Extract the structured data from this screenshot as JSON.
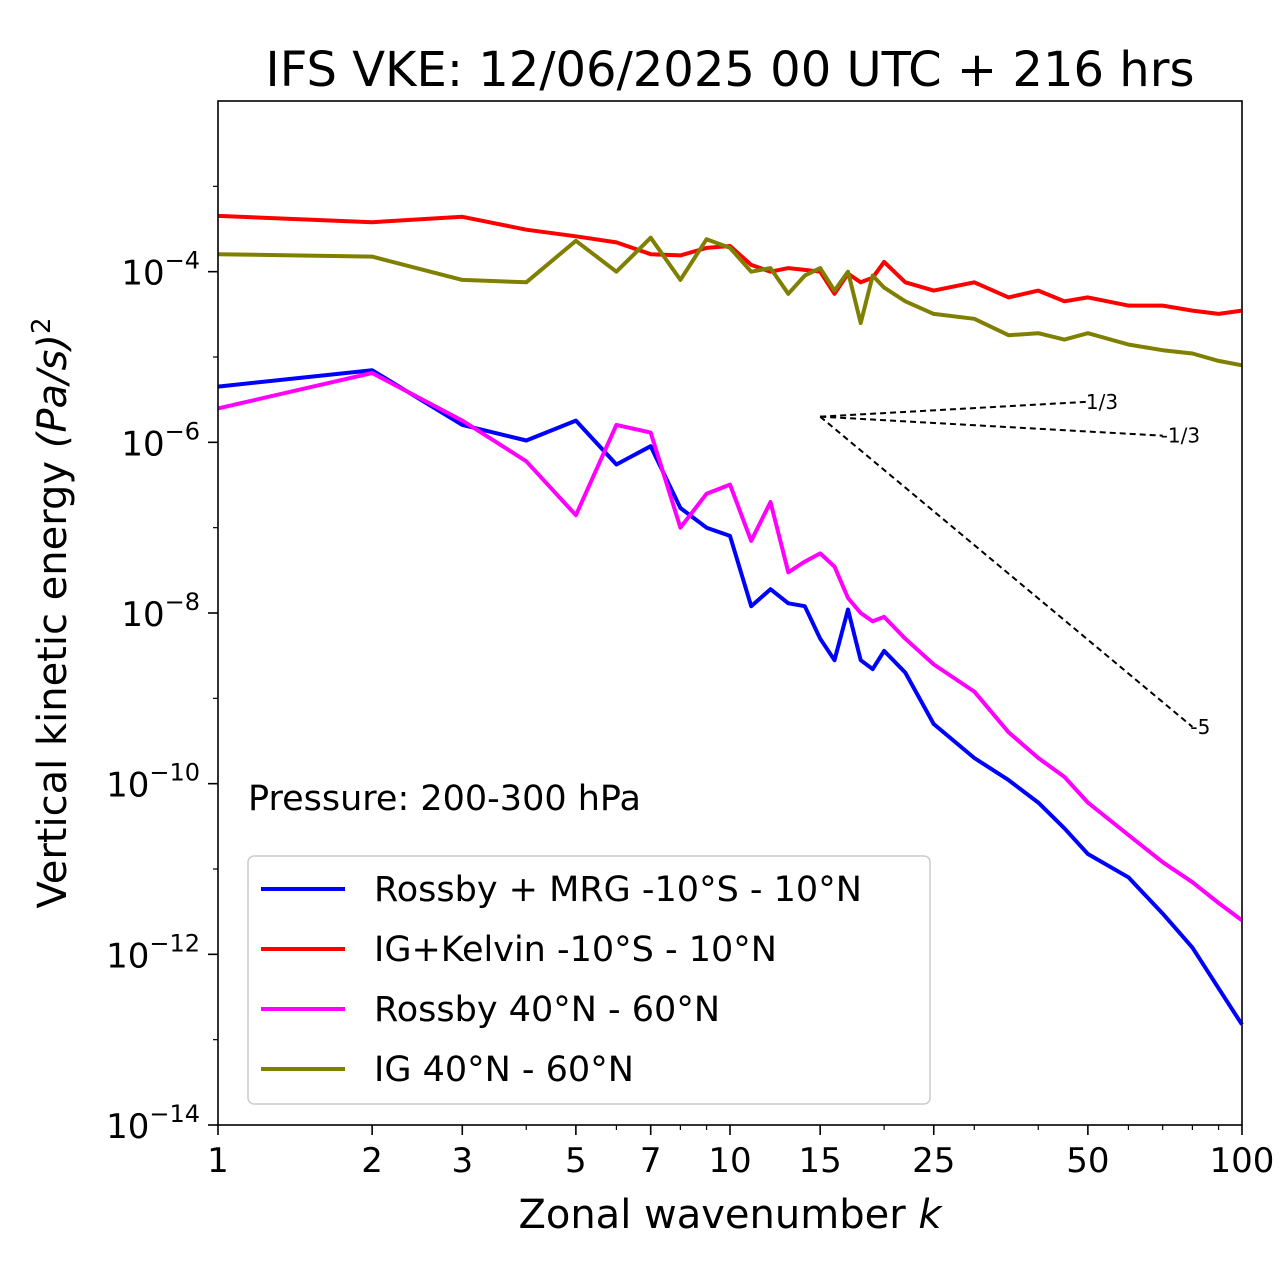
{
  "chart_data": {
    "type": "line",
    "title": "IFS VKE: 12/06/2025 00 UTC + 216 hrs",
    "xlabel": "Zonal wavenumber",
    "xlabel_var": "k",
    "ylabel": "Vertical kinetic energy",
    "ylabel_unit": "(Pa/s)",
    "ylabel_power": "2",
    "x_scale": "log",
    "y_scale": "log",
    "xlim": [
      1,
      100
    ],
    "ylim": [
      1e-14,
      0.01
    ],
    "x_ticks": [
      1,
      2,
      3,
      5,
      7,
      10,
      15,
      25,
      50,
      100
    ],
    "x_tick_labels": [
      "1",
      "2",
      "3",
      "5",
      "7",
      "10",
      "15",
      "25",
      "50",
      "100"
    ],
    "y_ticks": [
      {
        "value": 0.0001,
        "base": "10",
        "exp": "−4"
      },
      {
        "value": 1e-06,
        "base": "10",
        "exp": "−6"
      },
      {
        "value": 1e-08,
        "base": "10",
        "exp": "−8"
      },
      {
        "value": 1e-10,
        "base": "10",
        "exp": "−10"
      },
      {
        "value": 1e-12,
        "base": "10",
        "exp": "−12"
      },
      {
        "value": 1e-14,
        "base": "10",
        "exp": "−14"
      }
    ],
    "annotation": "Pressure: 200-300 hPa",
    "legend_position": "lower-left",
    "series": [
      {
        "name": "Rossby + MRG -10°S - 10°N",
        "color": "#0000ff",
        "x": [
          1,
          2,
          3,
          4,
          5,
          6,
          7,
          8,
          9,
          10,
          11,
          12,
          13,
          14,
          15,
          16,
          17,
          18,
          19,
          20,
          22,
          25,
          30,
          35,
          40,
          45,
          50,
          60,
          70,
          80,
          90,
          100
        ],
        "y": [
          4.5e-06,
          7e-06,
          1.6e-06,
          1.05e-06,
          1.8e-06,
          5.5e-07,
          9e-07,
          1.7e-07,
          1e-07,
          8e-08,
          1.2e-08,
          1.9e-08,
          1.3e-08,
          1.2e-08,
          5e-09,
          2.8e-09,
          1.1e-08,
          2.8e-09,
          2.2e-09,
          3.6e-09,
          2e-09,
          5e-10,
          2e-10,
          1.1e-10,
          6e-11,
          3e-11,
          1.5e-11,
          8e-12,
          3e-12,
          1.2e-12,
          4e-13,
          1.5e-13
        ]
      },
      {
        "name": "IG+Kelvin -10°S - 10°N",
        "color": "#ff0000",
        "x": [
          1,
          2,
          3,
          4,
          5,
          6,
          7,
          8,
          9,
          10,
          11,
          12,
          13,
          14,
          15,
          16,
          17,
          18,
          19,
          20,
          22,
          25,
          30,
          35,
          40,
          45,
          50,
          60,
          70,
          80,
          90,
          100
        ],
        "y": [
          0.00045,
          0.00038,
          0.00044,
          0.00031,
          0.00026,
          0.00022,
          0.00016,
          0.000155,
          0.00019,
          0.0002,
          0.00012,
          0.0001,
          0.00011,
          0.000105,
          0.0001,
          5.5e-05,
          9.5e-05,
          7.5e-05,
          8.5e-05,
          0.00013,
          7.5e-05,
          6e-05,
          7.5e-05,
          5e-05,
          6e-05,
          4.5e-05,
          5e-05,
          4e-05,
          4e-05,
          3.5e-05,
          3.2e-05,
          3.5e-05
        ]
      },
      {
        "name": "Rossby 40°N - 60°N",
        "color": "#ff00ff",
        "x": [
          1,
          2,
          3,
          4,
          5,
          6,
          7,
          8,
          9,
          10,
          11,
          12,
          13,
          14,
          15,
          16,
          17,
          18,
          19,
          20,
          22,
          25,
          30,
          35,
          40,
          45,
          50,
          60,
          70,
          80,
          90,
          100
        ],
        "y": [
          2.5e-06,
          6.5e-06,
          1.8e-06,
          6e-07,
          1.4e-07,
          1.6e-06,
          1.3e-06,
          1e-07,
          2.5e-07,
          3.2e-07,
          7e-08,
          2e-07,
          3e-08,
          4e-08,
          5e-08,
          3.5e-08,
          1.5e-08,
          1e-08,
          8e-09,
          9e-09,
          5e-09,
          2.5e-09,
          1.2e-09,
          4e-10,
          2e-10,
          1.2e-10,
          6e-11,
          2.5e-11,
          1.2e-11,
          7e-12,
          4e-12,
          2.5e-12
        ]
      },
      {
        "name": "IG 40°N - 60°N",
        "color": "#808000",
        "x": [
          1,
          2,
          3,
          4,
          5,
          6,
          7,
          8,
          9,
          10,
          11,
          12,
          13,
          14,
          15,
          16,
          17,
          18,
          19,
          20,
          22,
          25,
          30,
          35,
          40,
          45,
          50,
          60,
          70,
          80,
          90,
          100
        ],
        "y": [
          0.00016,
          0.00015,
          8e-05,
          7.5e-05,
          0.00023,
          0.0001,
          0.00025,
          8e-05,
          0.00024,
          0.00019,
          0.0001,
          0.00011,
          5.5e-05,
          9e-05,
          0.00011,
          6e-05,
          0.0001,
          2.5e-05,
          9e-05,
          6.5e-05,
          4.5e-05,
          3.2e-05,
          2.8e-05,
          1.8e-05,
          1.9e-05,
          1.6e-05,
          1.9e-05,
          1.4e-05,
          1.2e-05,
          1.1e-05,
          9e-06,
          8e-06
        ]
      }
    ],
    "slope_lines": [
      {
        "label": "1/3",
        "slope": 0.3333,
        "x0": 15,
        "y0": 2e-06,
        "x1": 50
      },
      {
        "label": "-1/3",
        "slope": -0.3333,
        "x0": 15,
        "y0": 2e-06,
        "x1": 70
      },
      {
        "label": "-5",
        "slope": -5,
        "x0": 15,
        "y0": 2e-06,
        "x1": 80
      }
    ]
  }
}
